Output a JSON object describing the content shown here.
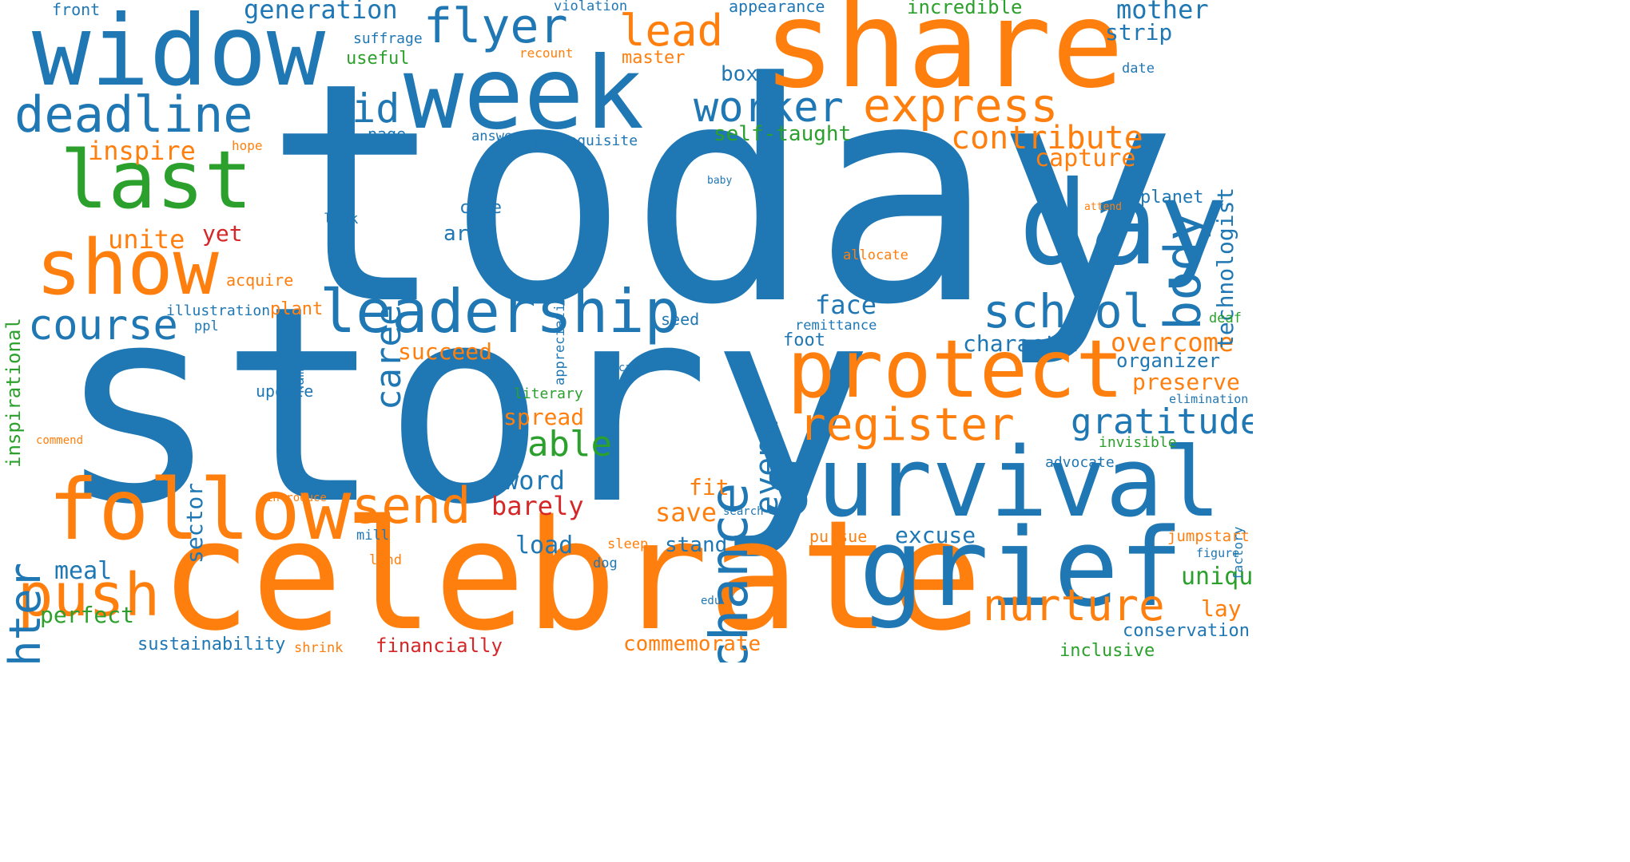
{
  "colors": {
    "blue": "#1f77b4",
    "orange": "#ff7f0e",
    "green": "#2ca02c",
    "red": "#d62728"
  },
  "words": [
    {
      "text": "today",
      "color": "blue",
      "weight": 1.0
    },
    {
      "text": "story",
      "color": "blue",
      "weight": 0.92
    },
    {
      "text": "celebrate",
      "color": "orange",
      "weight": 0.7
    },
    {
      "text": "share",
      "color": "orange",
      "weight": 0.62
    },
    {
      "text": "week",
      "color": "blue",
      "weight": 0.56
    },
    {
      "text": "widow",
      "color": "blue",
      "weight": 0.56
    },
    {
      "text": "survival",
      "color": "blue",
      "weight": 0.56
    },
    {
      "text": "grief",
      "color": "blue",
      "weight": 0.55
    },
    {
      "text": "day",
      "color": "blue",
      "weight": 0.54
    },
    {
      "text": "protect",
      "color": "orange",
      "weight": 0.5
    },
    {
      "text": "follow",
      "color": "orange",
      "weight": 0.47
    },
    {
      "text": "last",
      "color": "green",
      "weight": 0.45
    },
    {
      "text": "show",
      "color": "orange",
      "weight": 0.43
    },
    {
      "text": "leadership",
      "color": "blue",
      "weight": 0.38
    },
    {
      "text": "push",
      "color": "orange",
      "weight": 0.37
    },
    {
      "text": "register",
      "color": "orange",
      "weight": 0.34
    },
    {
      "text": "deadline",
      "color": "blue",
      "weight": 0.33
    },
    {
      "text": "flyer",
      "color": "blue",
      "weight": 0.33
    },
    {
      "text": "body",
      "color": "blue",
      "weight": 0.33
    },
    {
      "text": "chance",
      "color": "blue",
      "weight": 0.33
    },
    {
      "text": "send",
      "color": "orange",
      "weight": 0.32
    },
    {
      "text": "nurture",
      "color": "orange",
      "weight": 0.31
    },
    {
      "text": "school",
      "color": "blue",
      "weight": 0.31
    },
    {
      "text": "express",
      "color": "orange",
      "weight": 0.3
    },
    {
      "text": "course",
      "color": "blue",
      "weight": 0.29
    },
    {
      "text": "lead",
      "color": "orange",
      "weight": 0.29
    },
    {
      "text": "daughter",
      "color": "blue",
      "weight": 0.28
    },
    {
      "text": "worker",
      "color": "blue",
      "weight": 0.27
    },
    {
      "text": "kid",
      "color": "blue",
      "weight": 0.25
    },
    {
      "text": "able",
      "color": "green",
      "weight": 0.24
    },
    {
      "text": "gratitude",
      "color": "blue",
      "weight": 0.23
    },
    {
      "text": "career",
      "color": "blue",
      "weight": 0.21
    },
    {
      "text": "contribute",
      "color": "orange",
      "weight": 0.21
    },
    {
      "text": "event",
      "color": "blue",
      "weight": 0.2
    },
    {
      "text": "generation",
      "color": "blue",
      "weight": 0.19
    },
    {
      "text": "mother",
      "color": "blue",
      "weight": 0.19
    },
    {
      "text": "overcome",
      "color": "orange",
      "weight": 0.18
    },
    {
      "text": "unite",
      "color": "orange",
      "weight": 0.18
    },
    {
      "text": "inspire",
      "color": "orange",
      "weight": 0.18
    },
    {
      "text": "face",
      "color": "blue",
      "weight": 0.18
    },
    {
      "text": "capture",
      "color": "orange",
      "weight": 0.17
    },
    {
      "text": "barely",
      "color": "red",
      "weight": 0.17
    },
    {
      "text": "technologist",
      "color": "blue",
      "weight": 0.17
    },
    {
      "text": "word",
      "color": "blue",
      "weight": 0.17
    },
    {
      "text": "save",
      "color": "orange",
      "weight": 0.17
    },
    {
      "text": "preserve",
      "color": "orange",
      "weight": 0.16
    },
    {
      "text": "unique",
      "color": "green",
      "weight": 0.16
    },
    {
      "text": "load",
      "color": "blue",
      "weight": 0.16
    },
    {
      "text": "character",
      "color": "blue",
      "weight": 0.16
    },
    {
      "text": "succeed",
      "color": "orange",
      "weight": 0.16
    },
    {
      "text": "meal",
      "color": "blue",
      "weight": 0.16
    },
    {
      "text": "spread",
      "color": "orange",
      "weight": 0.15
    },
    {
      "text": "perfect",
      "color": "green",
      "weight": 0.15
    },
    {
      "text": "excuse",
      "color": "blue",
      "weight": 0.15
    },
    {
      "text": "yet",
      "color": "red",
      "weight": 0.15
    },
    {
      "text": "fit",
      "color": "orange",
      "weight": 0.15
    },
    {
      "text": "commemorate",
      "color": "orange",
      "weight": 0.15
    },
    {
      "text": "stand",
      "color": "blue",
      "weight": 0.15
    },
    {
      "text": "strip",
      "color": "blue",
      "weight": 0.15
    },
    {
      "text": "lay",
      "color": "orange",
      "weight": 0.15
    },
    {
      "text": "self-taught",
      "color": "green",
      "weight": 0.15
    },
    {
      "text": "sector",
      "color": "blue",
      "weight": 0.15
    },
    {
      "text": "inspirational",
      "color": "green",
      "weight": 0.14
    },
    {
      "text": "incredible",
      "color": "green",
      "weight": 0.14
    },
    {
      "text": "organizer",
      "color": "blue",
      "weight": 0.14
    },
    {
      "text": "financially",
      "color": "red",
      "weight": 0.14
    },
    {
      "text": "sustainability",
      "color": "blue",
      "weight": 0.13
    },
    {
      "text": "box",
      "color": "blue",
      "weight": 0.13
    },
    {
      "text": "master",
      "color": "orange",
      "weight": 0.13
    },
    {
      "text": "arm",
      "color": "blue",
      "weight": 0.13
    },
    {
      "text": "planet",
      "color": "blue",
      "weight": 0.13
    },
    {
      "text": "conservation",
      "color": "blue",
      "weight": 0.13
    },
    {
      "text": "inclusive",
      "color": "green",
      "weight": 0.13
    },
    {
      "text": "acquire",
      "color": "orange",
      "weight": 0.12
    },
    {
      "text": "plant",
      "color": "orange",
      "weight": 0.12
    },
    {
      "text": "useful",
      "color": "green",
      "weight": 0.12
    },
    {
      "text": "care",
      "color": "blue",
      "weight": 0.12
    },
    {
      "text": "update",
      "color": "blue",
      "weight": 0.11
    },
    {
      "text": "appearance",
      "color": "blue",
      "weight": 0.11
    },
    {
      "text": "pursue",
      "color": "orange",
      "weight": 0.11
    },
    {
      "text": "page",
      "color": "blue",
      "weight": 0.11
    },
    {
      "text": "jumpstart",
      "color": "orange",
      "weight": 0.11
    },
    {
      "text": "foot",
      "color": "blue",
      "weight": 0.11
    },
    {
      "text": "front",
      "color": "blue",
      "weight": 0.11
    },
    {
      "text": "advocate",
      "color": "blue",
      "weight": 0.11
    },
    {
      "text": "illustration",
      "color": "blue",
      "weight": 0.11
    },
    {
      "text": "invisible",
      "color": "green",
      "weight": 0.1
    },
    {
      "text": "seed",
      "color": "blue",
      "weight": 0.1
    },
    {
      "text": "suffrage",
      "color": "blue",
      "weight": 0.1
    },
    {
      "text": "literary",
      "color": "green",
      "weight": 0.1
    },
    {
      "text": "prerequisite",
      "color": "blue",
      "weight": 0.1
    },
    {
      "text": "allocate",
      "color": "orange",
      "weight": 0.1
    },
    {
      "text": "remittance",
      "color": "blue",
      "weight": 0.1
    },
    {
      "text": "link",
      "color": "blue",
      "weight": 0.1
    },
    {
      "text": "answer",
      "color": "blue",
      "weight": 0.1
    },
    {
      "text": "appreciation",
      "color": "blue",
      "weight": 0.1
    },
    {
      "text": "shrink",
      "color": "orange",
      "weight": 0.1
    },
    {
      "text": "violation",
      "color": "blue",
      "weight": 0.09
    },
    {
      "text": "mill",
      "color": "blue",
      "weight": 0.09
    },
    {
      "text": "land",
      "color": "orange",
      "weight": 0.09
    },
    {
      "text": "sleep",
      "color": "orange",
      "weight": 0.09
    },
    {
      "text": "factory",
      "color": "blue",
      "weight": 0.09
    },
    {
      "text": "deaf",
      "color": "green",
      "weight": 0.09
    },
    {
      "text": "name",
      "color": "blue",
      "weight": 0.09
    },
    {
      "text": "ppl",
      "color": "blue",
      "weight": 0.09
    },
    {
      "text": "date",
      "color": "blue",
      "weight": 0.09
    },
    {
      "text": "dog",
      "color": "blue",
      "weight": 0.09
    },
    {
      "text": "recount",
      "color": "orange",
      "weight": 0.09
    },
    {
      "text": "figure",
      "color": "blue",
      "weight": 0.08
    },
    {
      "text": "elimination",
      "color": "blue",
      "weight": 0.08
    },
    {
      "text": "hope",
      "color": "orange",
      "weight": 0.08
    },
    {
      "text": "search",
      "color": "blue",
      "weight": 0.08
    },
    {
      "text": "edu",
      "color": "blue",
      "weight": 0.08
    },
    {
      "text": "recap",
      "color": "blue",
      "weight": 0.08
    },
    {
      "text": "introduce",
      "color": "orange",
      "weight": 0.08
    },
    {
      "text": "commend",
      "color": "orange",
      "weight": 0.08
    },
    {
      "text": "baby",
      "color": "blue",
      "weight": 0.08
    },
    {
      "text": "attend",
      "color": "orange",
      "weight": 0.08
    }
  ]
}
